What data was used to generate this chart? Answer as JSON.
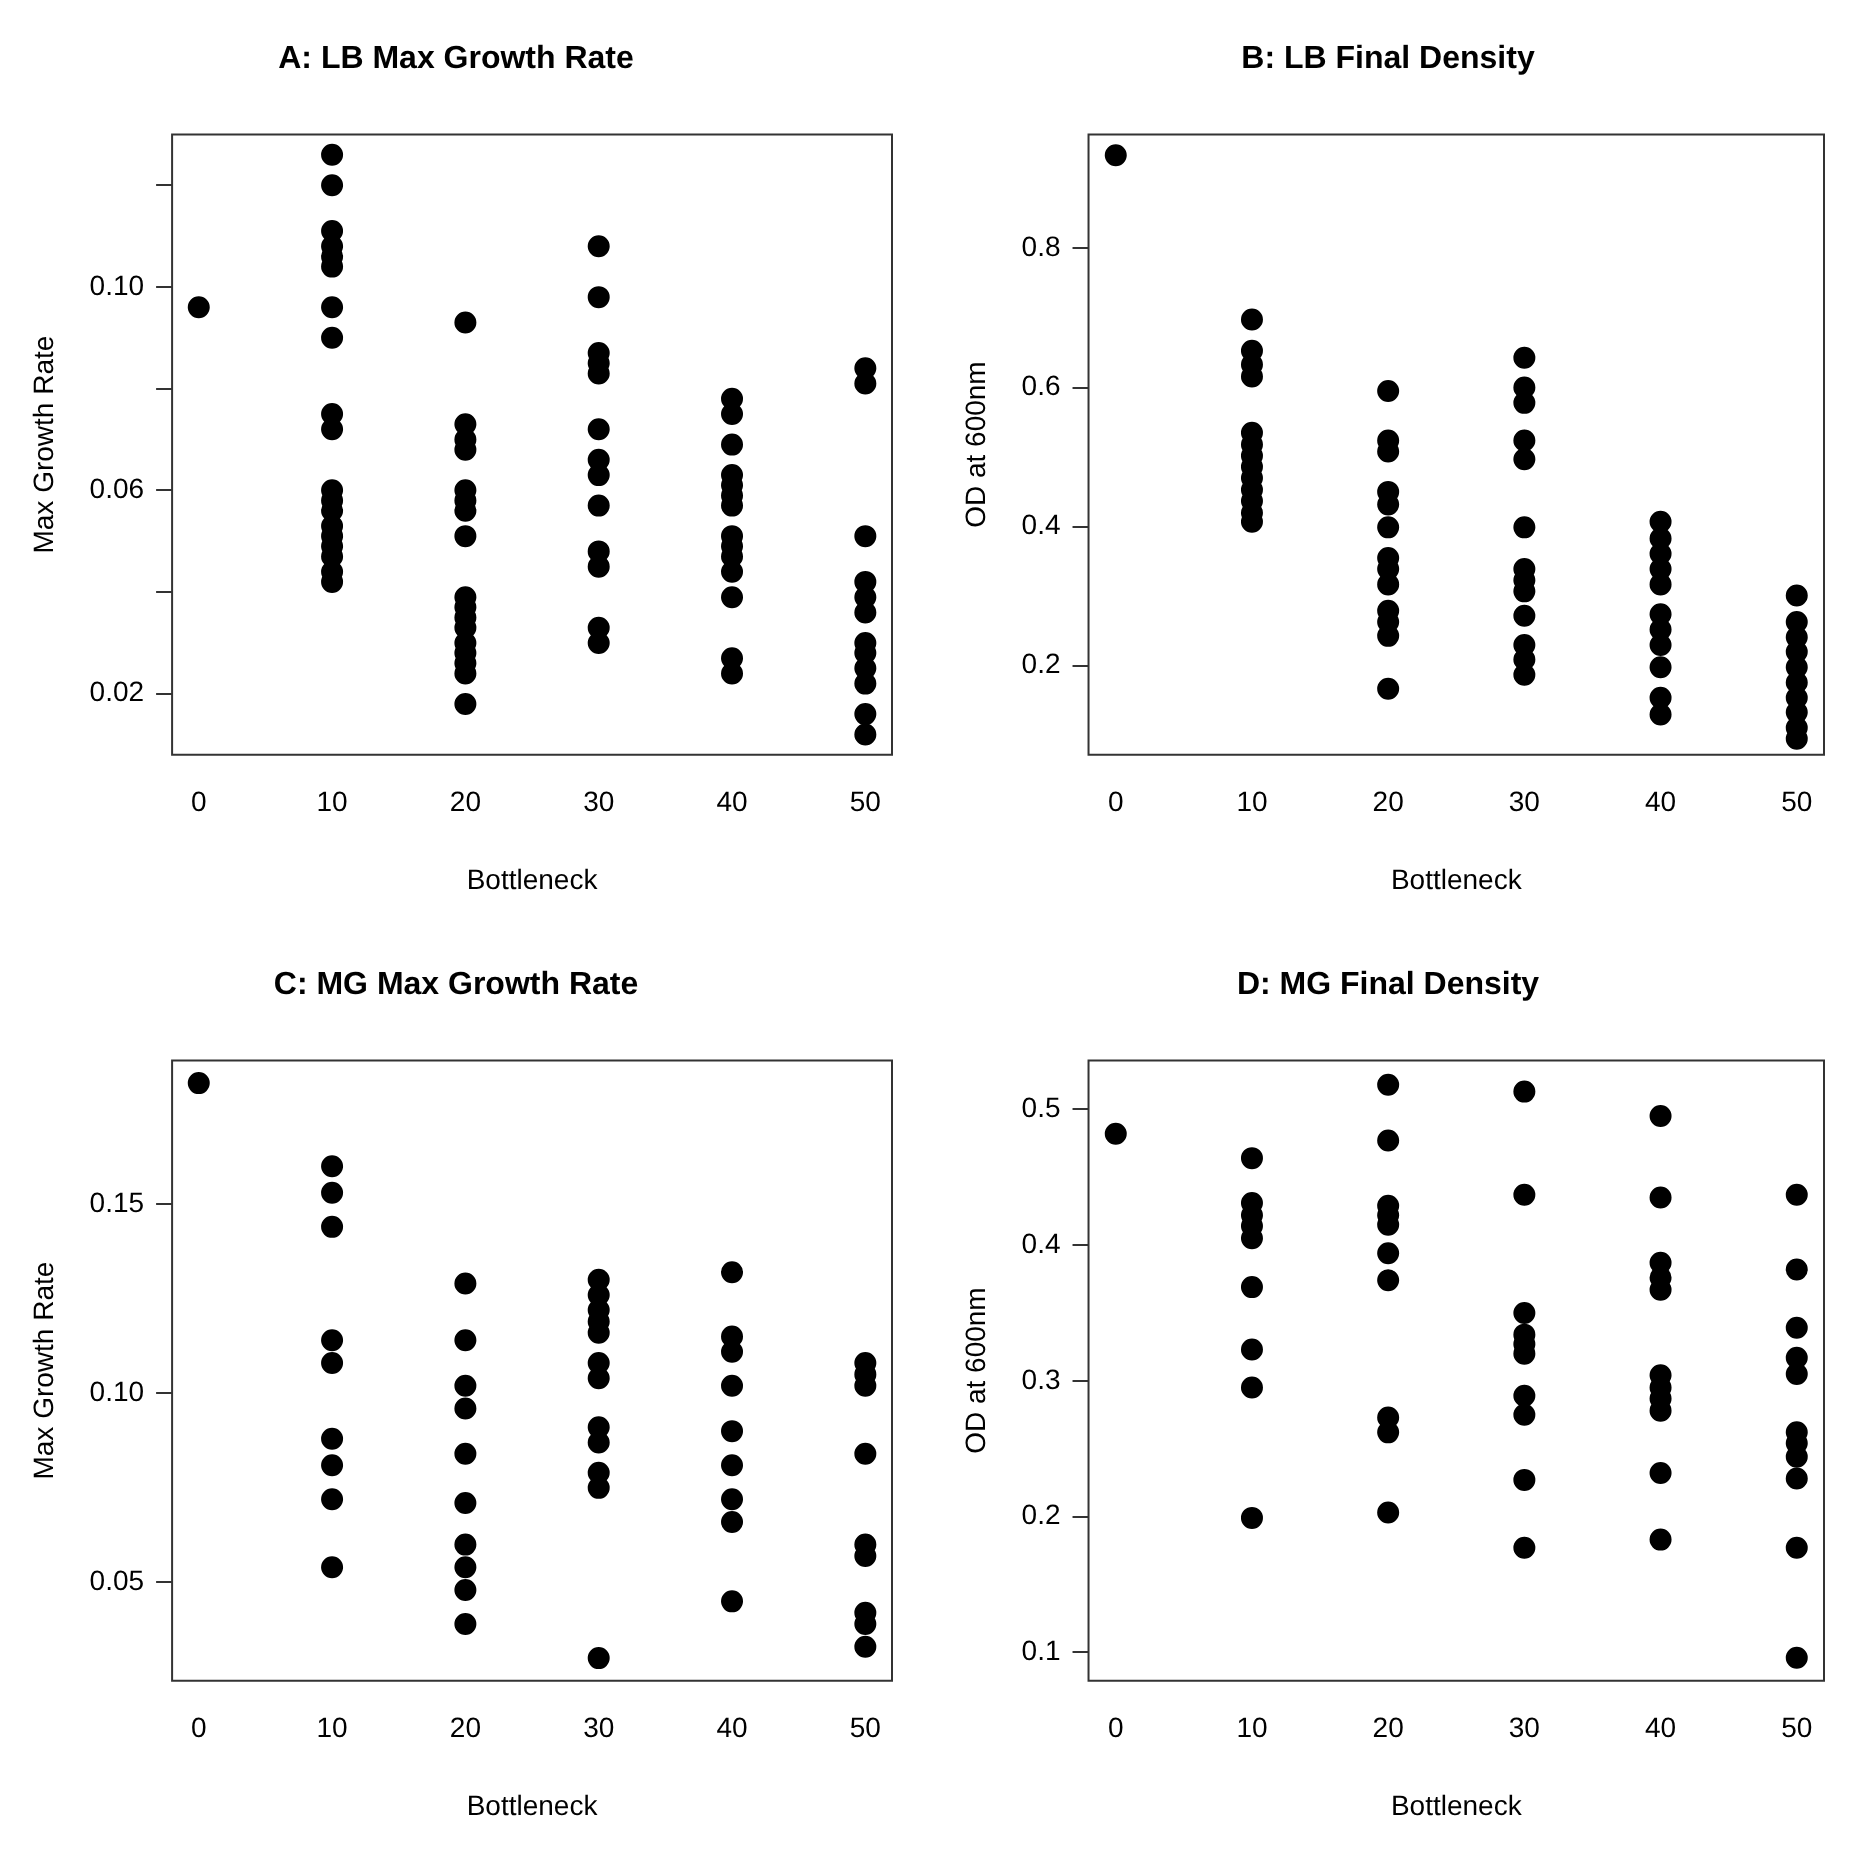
{
  "chart_data": [
    {
      "type": "scatter",
      "title": "A: LB Max Growth Rate",
      "xlabel": "Bottleneck",
      "ylabel": "Max Growth Rate",
      "xlim": [
        -2,
        52
      ],
      "xticks": [
        0,
        10,
        20,
        30,
        40,
        50
      ],
      "ylim": [
        0.008,
        0.13
      ],
      "yticks": [
        0.02,
        {
          "value": 0.04,
          "label": null
        },
        0.06,
        {
          "value": 0.08,
          "label": null
        },
        {
          "value": 0.1,
          "label": "0.10"
        },
        {
          "value": 0.12,
          "label": null
        }
      ],
      "grid": false,
      "legend": false,
      "marker": "circle",
      "series": [
        {
          "color": "#000000",
          "x": [
            0,
            10,
            10,
            10,
            10,
            10,
            10,
            10,
            10,
            10,
            10,
            10,
            10,
            10,
            10,
            10,
            10,
            10,
            10,
            10,
            20,
            20,
            20,
            20,
            20,
            20,
            20,
            20,
            20,
            20,
            20,
            20,
            20,
            20,
            20,
            20,
            20,
            30,
            30,
            30,
            30,
            30,
            30,
            30,
            30,
            30,
            30,
            30,
            30,
            30,
            40,
            40,
            40,
            40,
            40,
            40,
            40,
            40,
            40,
            40,
            40,
            40,
            40,
            40,
            50,
            50,
            50,
            50,
            50,
            50,
            50,
            50,
            50,
            50,
            50,
            50
          ],
          "values": [
            0.096,
            0.126,
            0.12,
            0.111,
            0.108,
            0.106,
            0.104,
            0.096,
            0.09,
            0.075,
            0.072,
            0.06,
            0.058,
            0.056,
            0.053,
            0.051,
            0.049,
            0.047,
            0.044,
            0.042,
            0.093,
            0.073,
            0.07,
            0.068,
            0.06,
            0.058,
            0.056,
            0.051,
            0.039,
            0.037,
            0.035,
            0.033,
            0.03,
            0.028,
            0.026,
            0.024,
            0.018,
            0.108,
            0.098,
            0.087,
            0.085,
            0.083,
            0.072,
            0.066,
            0.063,
            0.057,
            0.048,
            0.045,
            0.033,
            0.03,
            0.078,
            0.075,
            0.069,
            0.063,
            0.061,
            0.059,
            0.057,
            0.051,
            0.049,
            0.047,
            0.044,
            0.039,
            0.027,
            0.024,
            0.084,
            0.081,
            0.051,
            0.042,
            0.039,
            0.036,
            0.03,
            0.028,
            0.025,
            0.022,
            0.016,
            0.012
          ]
        }
      ]
    },
    {
      "type": "scatter",
      "title": "B: LB Final Density",
      "xlabel": "Bottleneck",
      "ylabel": "OD at 600nm",
      "xlim": [
        -2,
        52
      ],
      "xticks": [
        0,
        10,
        20,
        30,
        40,
        50
      ],
      "ylim": [
        0.072,
        0.964
      ],
      "yticks": [
        0.2,
        0.4,
        0.6,
        0.8
      ],
      "grid": false,
      "legend": false,
      "marker": "circle",
      "series": [
        {
          "color": "#000000",
          "x": [
            0,
            10,
            10,
            10,
            10,
            10,
            10,
            10,
            10,
            10,
            10,
            10,
            10,
            10,
            20,
            20,
            20,
            20,
            20,
            20,
            20,
            20,
            20,
            20,
            20,
            20,
            20,
            30,
            30,
            30,
            30,
            30,
            30,
            30,
            30,
            30,
            30,
            30,
            30,
            30,
            40,
            40,
            40,
            40,
            40,
            40,
            40,
            40,
            40,
            40,
            40,
            50,
            50,
            50,
            50,
            50,
            50,
            50,
            50,
            50,
            50
          ],
          "values": [
            0.934,
            0.698,
            0.653,
            0.633,
            0.616,
            0.535,
            0.518,
            0.502,
            0.486,
            0.47,
            0.453,
            0.437,
            0.42,
            0.407,
            0.595,
            0.524,
            0.508,
            0.45,
            0.432,
            0.399,
            0.355,
            0.339,
            0.317,
            0.279,
            0.263,
            0.243,
            0.167,
            0.643,
            0.6,
            0.578,
            0.524,
            0.497,
            0.399,
            0.339,
            0.323,
            0.307,
            0.272,
            0.23,
            0.209,
            0.187,
            0.407,
            0.383,
            0.361,
            0.339,
            0.317,
            0.274,
            0.252,
            0.23,
            0.198,
            0.154,
            0.13,
            0.301,
            0.263,
            0.241,
            0.22,
            0.198,
            0.176,
            0.154,
            0.133,
            0.111,
            0.095
          ]
        }
      ]
    },
    {
      "type": "scatter",
      "title": "C: MG Max Growth Rate",
      "xlabel": "Bottleneck",
      "ylabel": "Max Growth Rate",
      "xlim": [
        -2,
        52
      ],
      "xticks": [
        0,
        10,
        20,
        30,
        40,
        50
      ],
      "ylim": [
        0.024,
        0.188
      ],
      "yticks": [
        0.05,
        {
          "value": 0.1,
          "label": "0.10"
        },
        0.15
      ],
      "grid": false,
      "legend": false,
      "marker": "circle",
      "series": [
        {
          "color": "#000000",
          "x": [
            0,
            10,
            10,
            10,
            10,
            10,
            10,
            10,
            10,
            10,
            20,
            20,
            20,
            20,
            20,
            20,
            20,
            20,
            20,
            20,
            30,
            30,
            30,
            30,
            30,
            30,
            30,
            30,
            30,
            30,
            30,
            30,
            40,
            40,
            40,
            40,
            40,
            40,
            40,
            40,
            40,
            50,
            50,
            50,
            50,
            50,
            50,
            50,
            50,
            50
          ],
          "values": [
            0.182,
            0.16,
            0.153,
            0.144,
            0.114,
            0.108,
            0.088,
            0.081,
            0.072,
            0.054,
            0.129,
            0.114,
            0.102,
            0.096,
            0.084,
            0.071,
            0.06,
            0.054,
            0.048,
            0.039,
            0.13,
            0.126,
            0.122,
            0.119,
            0.116,
            0.108,
            0.104,
            0.091,
            0.087,
            0.079,
            0.075,
            0.03,
            0.132,
            0.115,
            0.111,
            0.102,
            0.09,
            0.081,
            0.072,
            0.066,
            0.045,
            0.108,
            0.105,
            0.102,
            0.084,
            0.06,
            0.057,
            0.042,
            0.039,
            0.033
          ]
        }
      ]
    },
    {
      "type": "scatter",
      "title": "D: MG Final Density",
      "xlabel": "Bottleneck",
      "ylabel": "OD at 600nm",
      "xlim": [
        -2,
        52
      ],
      "xticks": [
        0,
        10,
        20,
        30,
        40,
        50
      ],
      "ylim": [
        0.079,
        0.536
      ],
      "yticks": [
        0.1,
        0.2,
        0.3,
        0.4,
        0.5
      ],
      "grid": false,
      "legend": false,
      "marker": "circle",
      "series": [
        {
          "color": "#000000",
          "x": [
            0,
            10,
            10,
            10,
            10,
            10,
            10,
            10,
            10,
            10,
            20,
            20,
            20,
            20,
            20,
            20,
            20,
            20,
            20,
            20,
            30,
            30,
            30,
            30,
            30,
            30,
            30,
            30,
            30,
            30,
            40,
            40,
            40,
            40,
            40,
            40,
            40,
            40,
            40,
            40,
            40,
            50,
            50,
            50,
            50,
            50,
            50,
            50,
            50,
            50,
            50,
            50
          ],
          "values": [
            0.482,
            0.464,
            0.431,
            0.422,
            0.414,
            0.405,
            0.369,
            0.323,
            0.295,
            0.199,
            0.518,
            0.477,
            0.429,
            0.422,
            0.415,
            0.394,
            0.374,
            0.273,
            0.262,
            0.203,
            0.513,
            0.437,
            0.35,
            0.334,
            0.327,
            0.32,
            0.289,
            0.275,
            0.227,
            0.177,
            0.495,
            0.435,
            0.387,
            0.376,
            0.367,
            0.304,
            0.295,
            0.287,
            0.278,
            0.232,
            0.183,
            0.437,
            0.382,
            0.339,
            0.317,
            0.305,
            0.262,
            0.254,
            0.244,
            0.228,
            0.177,
            0.096
          ]
        }
      ]
    }
  ]
}
